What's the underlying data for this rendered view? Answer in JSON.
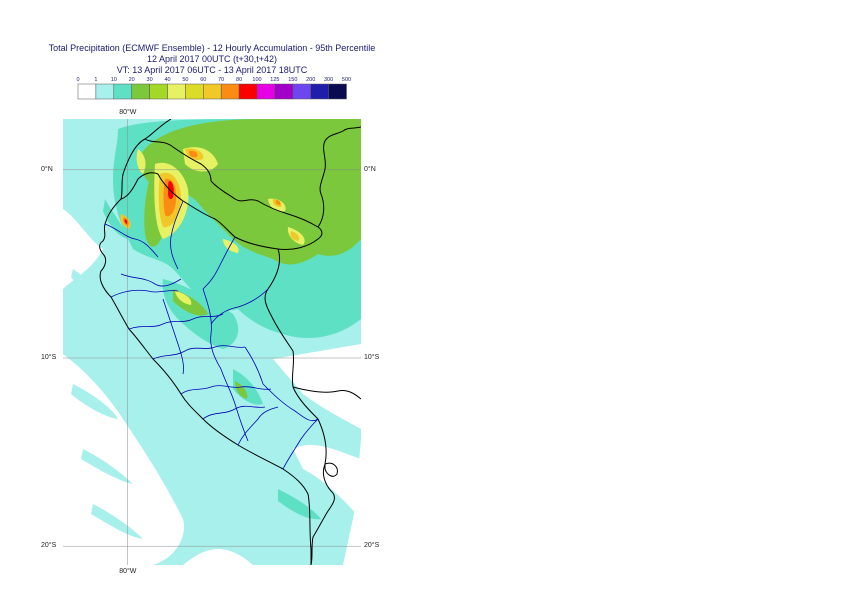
{
  "title": {
    "line1": "Total Precipitation (ECMWF Ensemble) - 12 Hourly Accumulation - 95th Percentile",
    "line2": "12 April 2017 00UTC (t+30,t+42)",
    "line3": "VT: 13 April 2017 06UTC - 13 April 2017 18UTC"
  },
  "legend": {
    "ticks": [
      "0",
      "1",
      "10",
      "20",
      "30",
      "40",
      "50",
      "60",
      "70",
      "80",
      "100",
      "125",
      "150",
      "200",
      "300",
      "500"
    ],
    "colors": [
      "#ffffff",
      "#a8f0ec",
      "#5ee0c4",
      "#7cc83c",
      "#a4d828",
      "#e6f264",
      "#dcdc28",
      "#f0c828",
      "#fa8c14",
      "#fa0000",
      "#e600e6",
      "#a000c8",
      "#6e46f0",
      "#1e1eaa",
      "#0a0a50"
    ]
  },
  "map": {
    "lat_labels": [
      {
        "text": "0°N",
        "lat": 0
      },
      {
        "text": "10°S",
        "lat": -10
      },
      {
        "text": "20°S",
        "lat": -20
      }
    ],
    "lon_labels": [
      {
        "text": "80°W",
        "lon": -80
      }
    ],
    "extent": {
      "lon_min": -83.6,
      "lon_max": -67.4,
      "lat_min": -21.0,
      "lat_max": 2.7
    },
    "colors": {
      "ocean_light": "#a8f0ec",
      "mid": "#5ee0c4",
      "green": "#7cc83c",
      "yellow": "#e6f264",
      "orange": "#f0c828",
      "dark_orange": "#fa8c14",
      "red": "#fa0000",
      "country_border": "#000000",
      "region_border": "#0000b4",
      "grid": "#8c8c8c"
    }
  }
}
